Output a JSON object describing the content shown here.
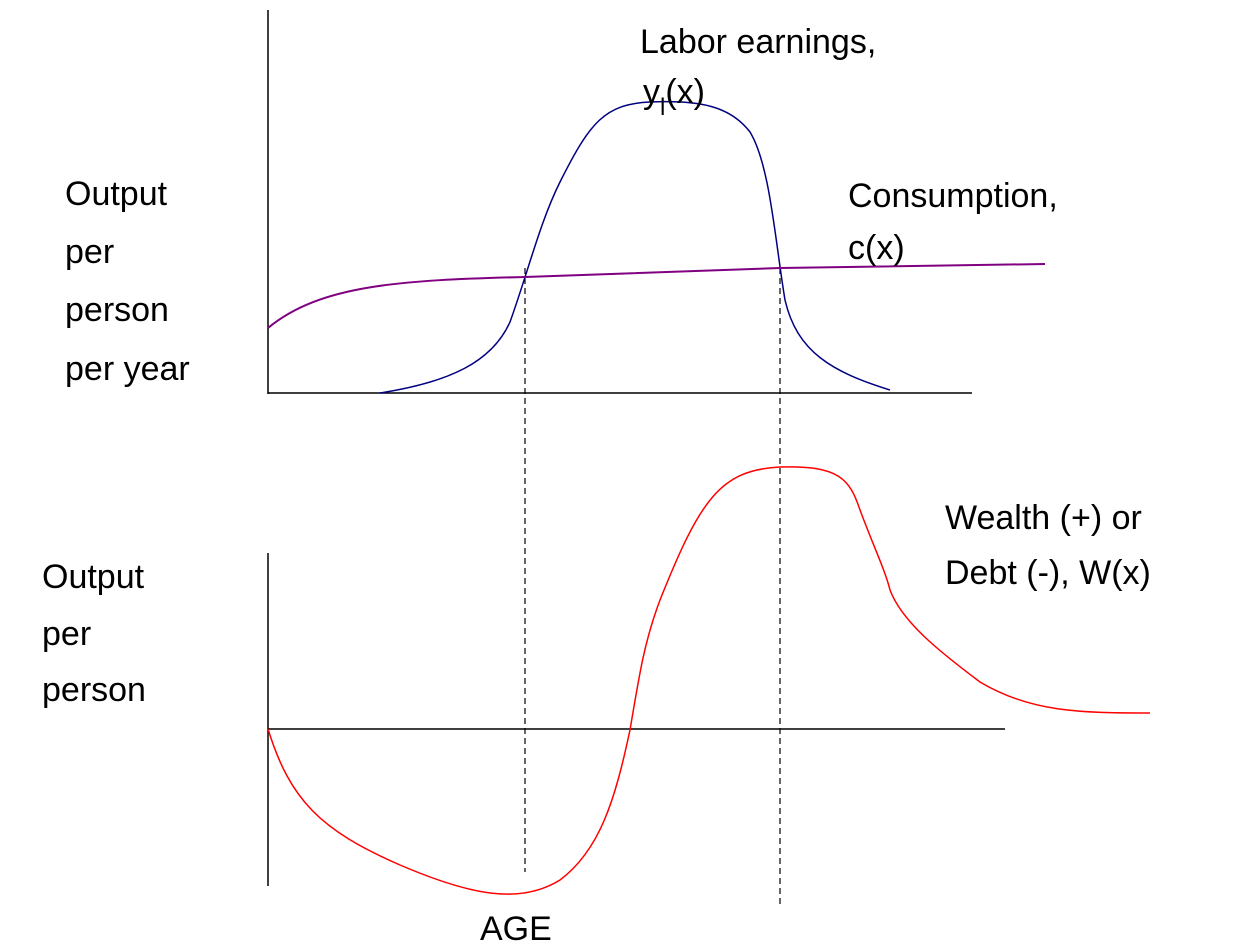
{
  "upper_panel": {
    "y_label": [
      "Output",
      "per",
      "person",
      "per year"
    ],
    "earnings_label": {
      "line1": "Labor earnings,",
      "symbol": "y",
      "subscript": "l",
      "argument": "(x)"
    },
    "consumption_label": [
      "Consumption,",
      "c(x)"
    ]
  },
  "lower_panel": {
    "y_label": [
      "Output",
      "per",
      "person"
    ],
    "wealth_label": [
      "Wealth (+) or",
      "Debt (-), W(x)"
    ],
    "x_label": "AGE"
  }
}
